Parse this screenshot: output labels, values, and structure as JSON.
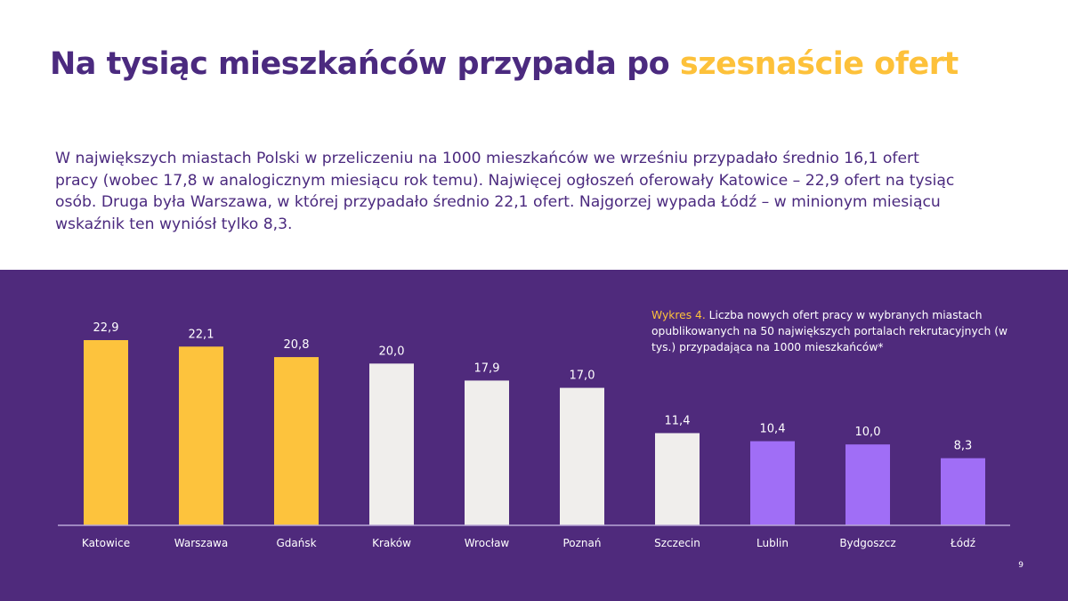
{
  "title": {
    "main": "Na tysiąc mieszkańców przypada po ",
    "highlight": "szesnaście ofert"
  },
  "intro": "W największych miastach Polski w przeliczeniu na 1000 mieszkańców we wrześniu przypadało średnio 16,1 ofert pracy (wobec 17,8 w analogicznym miesiącu rok temu). Najwięcej ogłoszeń oferowały Katowice – 22,9 ofert na tysiąc osób. Druga była Warszawa, w której przypadało średnio 22,1 ofert. Najgorzej wypada Łódź – w minionym miesiącu wskaźnik ten wyniósł tylko 8,3.",
  "caption": {
    "label": "Wykres 4.",
    "text": " Liczba nowych ofert pracy w wybranych miastach opublikowanych na 50 największych portalach rekrutacyjnych (w tys.) przypadająca na 1000 mieszkańców*"
  },
  "page_number": "9",
  "colors": {
    "background": "#4f2a7c",
    "yellow": "#fdc33d",
    "light": "#f0eeec",
    "violet": "#a06ef6",
    "title": "#4b2a7f"
  },
  "chart_data": {
    "type": "bar",
    "categories": [
      "Katowice",
      "Warszawa",
      "Gdańsk",
      "Kraków",
      "Wrocław",
      "Poznań",
      "Szczecin",
      "Lublin",
      "Bydgoszcz",
      "Łódź"
    ],
    "values": [
      22.9,
      22.1,
      20.8,
      20.0,
      17.9,
      17.0,
      11.4,
      10.4,
      10.0,
      8.3
    ],
    "data_labels": [
      "22,9",
      "22,1",
      "20,8",
      "20,0",
      "17,9",
      "17,0",
      "11,4",
      "10,4",
      "10,0",
      "8,3"
    ],
    "bar_colors": [
      "#fdc33d",
      "#fdc33d",
      "#fdc33d",
      "#f0eeec",
      "#f0eeec",
      "#f0eeec",
      "#f0eeec",
      "#a06ef6",
      "#a06ef6",
      "#a06ef6"
    ],
    "ylim": [
      0,
      25
    ],
    "grid": false,
    "y_axis_shown": false
  }
}
